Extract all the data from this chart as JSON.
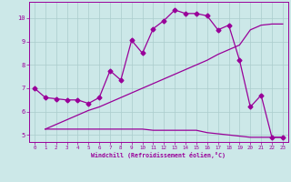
{
  "xlabel": "Windchill (Refroidissement éolien,°C)",
  "background_color": "#cce8e8",
  "line_color": "#990099",
  "grid_color": "#aacccc",
  "xlim": [
    -0.5,
    23.5
  ],
  "ylim": [
    4.7,
    10.7
  ],
  "xticks": [
    0,
    1,
    2,
    3,
    4,
    5,
    6,
    7,
    8,
    9,
    10,
    11,
    12,
    13,
    14,
    15,
    16,
    17,
    18,
    19,
    20,
    21,
    22,
    23
  ],
  "yticks": [
    5,
    6,
    7,
    8,
    9,
    10
  ],
  "line1_x": [
    0,
    1,
    2,
    3,
    4,
    5,
    6,
    7,
    8,
    9,
    10,
    11,
    12,
    13,
    14,
    15,
    16,
    17,
    18,
    19,
    20,
    21,
    22,
    23
  ],
  "line1_y": [
    7.0,
    6.6,
    6.55,
    6.5,
    6.5,
    6.35,
    6.6,
    7.75,
    7.35,
    9.05,
    8.5,
    9.55,
    9.9,
    10.35,
    10.2,
    10.2,
    10.1,
    9.5,
    9.7,
    8.2,
    6.2,
    6.7,
    4.9,
    4.9
  ],
  "line2_x": [
    1,
    2,
    3,
    4,
    5,
    6,
    7,
    8,
    9,
    10,
    11,
    12,
    13,
    14,
    15,
    16,
    17,
    18,
    19,
    20,
    21,
    22,
    23
  ],
  "line2_y": [
    5.25,
    5.25,
    5.25,
    5.25,
    5.25,
    5.25,
    5.25,
    5.25,
    5.25,
    5.25,
    5.2,
    5.2,
    5.2,
    5.2,
    5.2,
    5.1,
    5.05,
    5.0,
    4.95,
    4.9,
    4.9,
    4.9,
    4.9
  ],
  "line3_x": [
    1,
    2,
    3,
    4,
    5,
    6,
    7,
    8,
    9,
    10,
    11,
    12,
    13,
    14,
    15,
    16,
    17,
    18,
    19,
    20,
    21,
    22,
    23
  ],
  "line3_y": [
    5.25,
    5.45,
    5.65,
    5.85,
    6.05,
    6.2,
    6.4,
    6.6,
    6.8,
    7.0,
    7.2,
    7.4,
    7.6,
    7.8,
    8.0,
    8.2,
    8.45,
    8.65,
    8.85,
    9.5,
    9.7,
    9.75,
    9.75
  ],
  "markersize": 2.5,
  "linewidth": 0.9
}
